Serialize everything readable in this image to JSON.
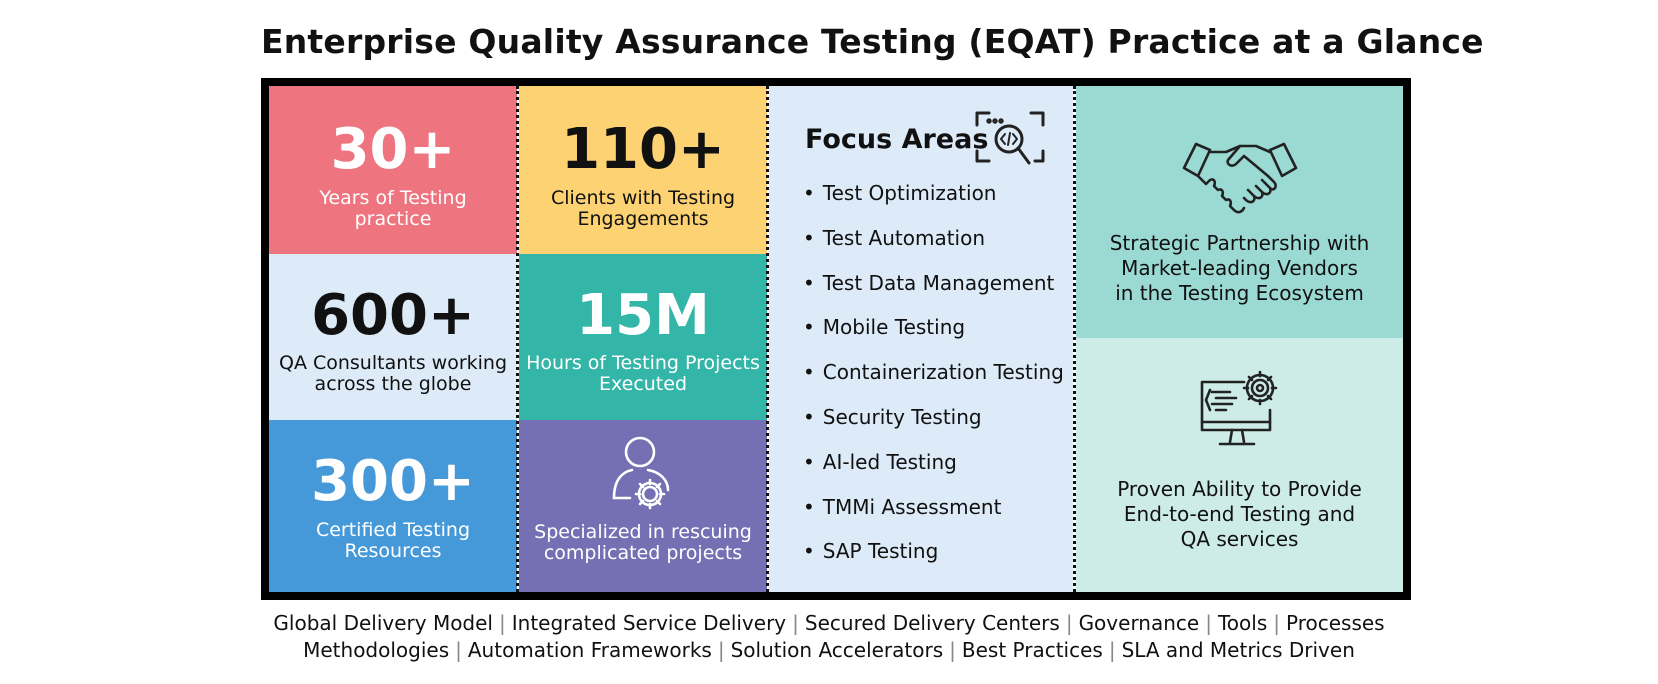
{
  "title": "Enterprise Quality Assurance Testing (EQAT) Practice at a Glance",
  "colors": {
    "red": "#ee7580",
    "yellow": "#fdd273",
    "light_blue": "#dcebf7",
    "teal": "#33b5a8",
    "blue": "#4699d8",
    "purple": "#7570b3",
    "focus_bg": "#dcebf7",
    "mint_dark": "#9bdad3",
    "mint_light": "#cdece7"
  },
  "stats": {
    "years": {
      "value": "30+",
      "line1": "Years of Testing",
      "line2": "practice"
    },
    "clients": {
      "value": "110+",
      "line1": "Clients with Testing",
      "line2": "Engagements"
    },
    "consultants": {
      "value": "600+",
      "line1": "QA Consultants working",
      "line2": "across the globe"
    },
    "hours": {
      "value": "15M",
      "line1": "Hours of Testing Projects",
      "line2": "Executed"
    },
    "certified": {
      "value": "300+",
      "line1": "Certified Testing",
      "line2": "Resources"
    },
    "rescue": {
      "icon": "person-gear-icon",
      "line1": "Specialized in rescuing",
      "line2": "complicated projects"
    }
  },
  "focus": {
    "title": "Focus Areas",
    "icon": "code-search-icon",
    "items": [
      "Test Optimization",
      "Test Automation",
      "Test Data Management",
      "Mobile Testing",
      "Containerization Testing",
      "Security Testing",
      "AI-led Testing",
      "TMMi Assessment",
      "SAP Testing"
    ]
  },
  "right": {
    "partnership": {
      "icon": "handshake-icon",
      "line1": "Strategic Partnership with",
      "line2": "Market-leading Vendors",
      "line3": "in the Testing Ecosystem"
    },
    "ability": {
      "icon": "monitor-gear-icon",
      "line1": "Proven Ability to Provide",
      "line2": "End-to-end Testing and",
      "line3": "QA services"
    }
  },
  "footer": {
    "row1": [
      "Global Delivery Model",
      "Integrated Service Delivery",
      "Secured Delivery Centers",
      "Governance",
      "Tools",
      "Processes"
    ],
    "row2": [
      "Methodologies",
      "Automation Frameworks",
      "Solution Accelerators",
      "Best Practices",
      "SLA and Metrics Driven"
    ]
  }
}
